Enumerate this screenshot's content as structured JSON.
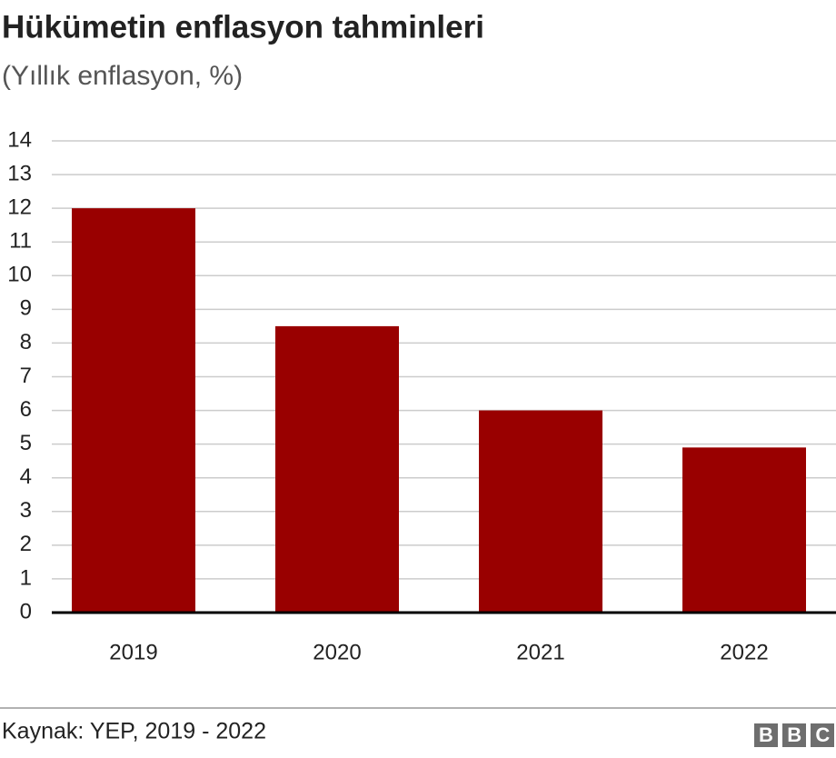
{
  "chart_data": {
    "type": "bar",
    "title": "Hükümetin enflasyon tahminleri",
    "subtitle": "(Yıllık enflasyon, %)",
    "categories": [
      "2019",
      "2020",
      "2021",
      "2022"
    ],
    "values": [
      12,
      8.5,
      6,
      4.9
    ],
    "color": "#990000",
    "ylim": [
      0,
      14
    ],
    "yticks": [
      0,
      1,
      2,
      3,
      4,
      5,
      6,
      7,
      8,
      9,
      10,
      11,
      12,
      13,
      14
    ],
    "grid": true,
    "source": "Kaynak: YEP, 2019 - 2022",
    "logo": "BBC"
  }
}
